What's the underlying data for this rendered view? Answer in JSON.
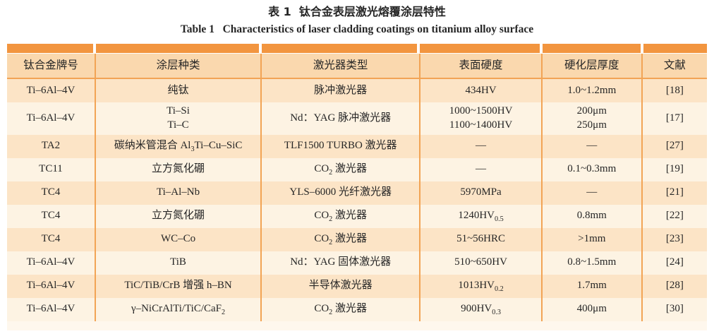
{
  "page": {
    "title_cn": "表 1  钛合金表层激光熔覆涂层特性",
    "title_en": "Table 1   Characteristics of laser cladding coatings on titanium alloy surface"
  },
  "colors": {
    "accent_orange": "#F2953F",
    "grid_line_orange": "#F2A455",
    "header_bg": "#FAD8AE",
    "row_odd_bg": "#FCE4C6",
    "row_even_bg": "#FDF3E3"
  },
  "table": {
    "headers": [
      "钛合金牌号",
      "涂层种类",
      "激光器类型",
      "表面硬度",
      "硬化层厚度",
      "文献"
    ],
    "rows": [
      [
        "Ti–6Al–4V",
        "纯钛",
        "脉冲激光器",
        "434HV",
        "1.0~1.2mm",
        "[18]"
      ],
      [
        "Ti–6Al–4V",
        "Ti–Si\nTi–C",
        "Nd：YAG 脉冲激光器",
        "1000~1500HV\n1100~1400HV",
        "200μm\n250μm",
        "[17]"
      ],
      [
        "TA2",
        "碳纳米管混合 Al_{3}Ti–Cu–SiC",
        "TLF1500 TURBO 激光器",
        "—",
        "—",
        "[27]"
      ],
      [
        "TC11",
        "立方氮化硼",
        "CO_{2} 激光器",
        "—",
        "0.1~0.3mm",
        "[19]"
      ],
      [
        "TC4",
        "Ti–Al–Nb",
        "YLS–6000 光纤激光器",
        "5970MPa",
        "—",
        "[21]"
      ],
      [
        "TC4",
        "立方氮化硼",
        "CO_{2} 激光器",
        "1240HV_{0.5}",
        "0.8mm",
        "[22]"
      ],
      [
        "TC4",
        "WC–Co",
        "CO_{2} 激光器",
        "51~56HRC",
        ">1mm",
        "[23]"
      ],
      [
        "Ti–6Al–4V",
        "TiB",
        "Nd：YAG 固体激光器",
        "510~650HV",
        "0.8~1.5mm",
        "[24]"
      ],
      [
        "Ti–6Al–4V",
        "TiC/TiB/CrB 增强 h–BN",
        "半导体激光器",
        "1013HV_{0.2}",
        "1.7mm",
        "[28]"
      ],
      [
        "Ti–6Al–4V",
        "γ–NiCrAlTi/TiC/CaF_{2}",
        "CO_{2} 激光器",
        "900HV_{0.3}",
        "400μm",
        "[30]"
      ]
    ]
  }
}
